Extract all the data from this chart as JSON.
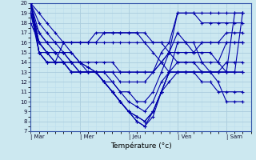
{
  "xlabel": "Température (°c)",
  "background_color": "#cce8f0",
  "grid_color_major": "#aaccdd",
  "grid_color_minor": "#bbddee",
  "line_color": "#0000aa",
  "ylim": [
    7,
    20
  ],
  "yticks": [
    7,
    8,
    9,
    10,
    11,
    12,
    13,
    14,
    15,
    16,
    17,
    18,
    19,
    20
  ],
  "xtick_labels": [
    "| Mar",
    "| Mer",
    "| Jeu",
    "| Ven",
    "| Sam"
  ],
  "xtick_positions": [
    0,
    1,
    2,
    3,
    4
  ],
  "series": [
    {
      "x": [
        0,
        0.17,
        0.33,
        0.5,
        0.67,
        0.83,
        1.0,
        1.17,
        1.33,
        1.5,
        1.67,
        1.83,
        2.0,
        2.17,
        2.33,
        2.5,
        2.67,
        2.83,
        3.0,
        3.17,
        3.33,
        3.5,
        3.67,
        3.83,
        4.0,
        4.17,
        4.33
      ],
      "y": [
        20,
        19,
        18,
        17,
        16,
        15,
        14,
        13.5,
        13,
        13,
        13,
        13,
        13,
        13,
        13,
        13,
        14,
        15,
        19,
        19,
        19,
        19,
        19,
        19,
        19,
        19,
        19
      ]
    },
    {
      "x": [
        0,
        0.17,
        0.33,
        0.5,
        0.67,
        0.83,
        1.0,
        1.17,
        1.33,
        1.5,
        1.67,
        1.83,
        2.0,
        2.17,
        2.33,
        2.5,
        2.67,
        2.83,
        3.0,
        3.17,
        3.33,
        3.5,
        3.67,
        3.83,
        4.0,
        4.17,
        4.33
      ],
      "y": [
        20,
        18,
        17,
        16,
        15,
        14,
        14,
        13.5,
        13,
        13,
        13,
        12,
        12,
        12,
        12,
        13,
        15,
        16,
        19,
        19,
        19,
        18,
        18,
        18,
        18,
        18,
        18
      ]
    },
    {
      "x": [
        0,
        0.17,
        0.33,
        0.5,
        0.67,
        0.83,
        1.0,
        1.17,
        1.33,
        1.5,
        1.67,
        1.83,
        2.0,
        2.17,
        2.33,
        2.5,
        2.67,
        2.83,
        3.0,
        3.17,
        3.33,
        3.5,
        3.67,
        3.83,
        4.0,
        4.17,
        4.33
      ],
      "y": [
        20,
        17,
        16,
        15,
        15,
        14,
        14,
        13,
        13,
        12,
        12,
        11,
        11,
        10,
        10,
        11,
        13,
        15,
        17,
        16,
        15,
        16,
        16,
        16,
        17,
        17,
        17
      ]
    },
    {
      "x": [
        0,
        0.17,
        0.33,
        0.5,
        0.67,
        0.83,
        1.0,
        1.17,
        1.33,
        1.5,
        1.67,
        1.83,
        2.0,
        2.17,
        2.33,
        2.5,
        2.67,
        2.83,
        3.0,
        3.17,
        3.33,
        3.5,
        3.67,
        3.83,
        4.0,
        4.17,
        4.33
      ],
      "y": [
        20,
        16,
        15,
        15,
        14,
        14,
        13,
        13,
        13,
        12,
        11,
        10,
        9,
        8.5,
        8,
        9,
        11,
        13,
        16,
        16,
        16,
        14,
        14,
        14,
        16,
        16,
        16
      ]
    },
    {
      "x": [
        0,
        0.17,
        0.33,
        0.5,
        0.67,
        0.83,
        1.0,
        1.17,
        1.33,
        1.5,
        1.67,
        1.83,
        2.0,
        2.17,
        2.33,
        2.5,
        2.67,
        2.83,
        3.0,
        3.17,
        3.33,
        3.5,
        3.67,
        3.83,
        4.0,
        4.17,
        4.33
      ],
      "y": [
        20,
        16,
        15,
        14,
        14,
        13,
        13,
        13,
        13,
        12,
        11,
        10,
        9,
        8,
        7.5,
        8.5,
        11,
        13,
        14,
        14,
        14,
        13,
        13,
        13,
        14,
        14,
        14
      ]
    },
    {
      "x": [
        0,
        0.17,
        0.33,
        0.5,
        0.67,
        0.83,
        1.0,
        1.17,
        1.33,
        1.5,
        1.67,
        1.83,
        2.0,
        2.17,
        2.33,
        2.5,
        2.67,
        2.83,
        3.0,
        3.17,
        3.33,
        3.5,
        3.67,
        3.83,
        4.0,
        4.17,
        4.33
      ],
      "y": [
        20,
        15,
        15,
        14,
        14,
        14,
        13,
        13,
        13,
        12,
        11,
        10,
        9,
        8,
        7.5,
        9,
        11,
        13,
        13,
        13,
        13,
        13,
        13,
        13,
        13,
        13,
        13
      ]
    },
    {
      "x": [
        0,
        0.17,
        0.33,
        0.5,
        0.67,
        0.83,
        1.0,
        1.17,
        1.33,
        1.5,
        1.67,
        1.83,
        2.0,
        2.17,
        2.33,
        2.5,
        2.67,
        2.83,
        3.0,
        3.17,
        3.33,
        3.5,
        3.67,
        3.83,
        4.0,
        4.17,
        4.33
      ],
      "y": [
        20,
        15,
        14,
        14,
        14,
        13,
        13,
        13,
        13,
        12,
        11,
        10,
        9,
        8.5,
        8,
        9,
        11,
        12,
        13,
        13,
        13,
        12,
        12,
        11,
        11,
        11,
        11
      ]
    },
    {
      "x": [
        0,
        0.17,
        0.33,
        0.5,
        0.67,
        0.83,
        1.0,
        1.17,
        1.33,
        1.5,
        1.67,
        1.83,
        2.0,
        2.17,
        2.33,
        2.5,
        2.67,
        2.83,
        3.0,
        3.17,
        3.33,
        3.5,
        3.67,
        3.83,
        4.0,
        4.17,
        4.33
      ],
      "y": [
        19,
        15,
        14,
        14,
        14,
        13,
        13,
        13,
        13,
        13,
        12,
        11,
        10,
        9.5,
        9,
        10,
        12,
        13,
        13,
        13,
        13,
        13,
        13,
        12,
        10,
        10,
        10
      ]
    },
    {
      "x": [
        0,
        0.17,
        0.33,
        0.5,
        0.67,
        0.83,
        1.0,
        1.17,
        1.33,
        1.5,
        1.67,
        1.83,
        2.0,
        2.17,
        2.33,
        2.5,
        2.67,
        2.83,
        3.0,
        3.17,
        3.33,
        3.5,
        3.67,
        3.83,
        4.0,
        4.17,
        4.33
      ],
      "y": [
        19,
        16,
        15,
        15,
        15,
        15,
        14,
        14,
        14,
        14,
        14,
        13,
        13,
        13,
        13,
        13,
        14,
        15,
        15,
        15,
        15,
        15,
        15,
        14,
        13,
        13,
        13
      ]
    },
    {
      "x": [
        0,
        0.17,
        0.33,
        0.5,
        0.67,
        0.83,
        1.0,
        1.17,
        1.33,
        1.5,
        1.67,
        1.83,
        2.0,
        2.17,
        2.33,
        2.5,
        2.67,
        2.83,
        3.0,
        3.17,
        3.33,
        3.5,
        3.67,
        3.83,
        4.0,
        4.17,
        4.33
      ],
      "y": [
        18,
        16,
        16,
        16,
        16,
        16,
        16,
        16,
        16,
        16,
        16,
        16,
        16,
        16,
        16,
        16,
        16,
        16,
        16,
        16,
        16,
        16,
        16,
        16,
        16,
        16,
        16
      ]
    },
    {
      "x": [
        0,
        0.17,
        0.33,
        0.5,
        0.67,
        0.83,
        1.0,
        1.17,
        1.33,
        1.5,
        1.67,
        1.83,
        2.0,
        2.17,
        2.33,
        2.5,
        2.67,
        2.83,
        3.0,
        3.17,
        3.33,
        3.5,
        3.67,
        3.83,
        4.0,
        4.17,
        4.33
      ],
      "y": [
        19,
        17,
        16,
        16,
        16,
        16,
        16,
        16,
        16,
        17,
        17,
        17,
        17,
        17,
        17,
        16,
        16,
        15,
        14,
        14,
        14,
        14,
        13,
        13,
        13,
        19,
        19
      ]
    },
    {
      "x": [
        0,
        0.17,
        0.33,
        0.5,
        0.67,
        0.83,
        1.0,
        1.17,
        1.33,
        1.5,
        1.67,
        1.83,
        2.0,
        2.17,
        2.33,
        2.5,
        2.67,
        2.83,
        3.0,
        3.17,
        3.33,
        3.5,
        3.67,
        3.83,
        4.0,
        4.17,
        4.33
      ],
      "y": [
        20,
        15,
        14,
        14,
        16,
        16,
        16,
        16,
        17,
        17,
        17,
        17,
        17,
        17,
        16,
        15,
        14,
        13,
        13,
        13,
        13,
        13,
        13,
        13,
        13,
        13,
        19
      ]
    }
  ]
}
